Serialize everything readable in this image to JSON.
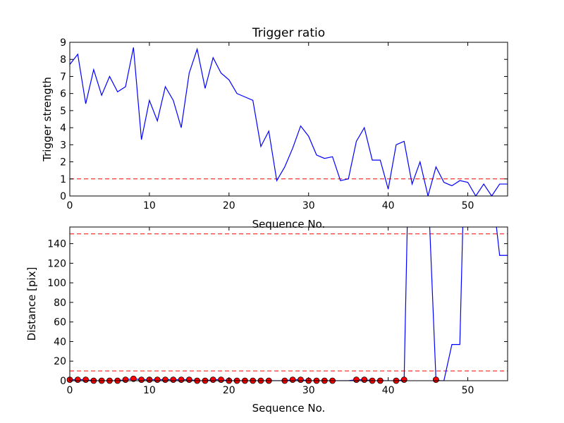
{
  "chart_data": [
    {
      "type": "line",
      "title": "Trigger ratio",
      "xlabel": "Sequence No.",
      "ylabel": "Trigger strength",
      "xlim": [
        0,
        55
      ],
      "ylim": [
        0,
        9
      ],
      "x_ticks": [
        "0",
        "10",
        "20",
        "30",
        "40",
        "50"
      ],
      "y_ticks": [
        "0",
        "1",
        "2",
        "3",
        "4",
        "5",
        "6",
        "7",
        "8",
        "9"
      ],
      "grid": false,
      "threshold_lines": [
        {
          "y": 1,
          "color": "#ff0000",
          "style": "dashed"
        }
      ],
      "series": [
        {
          "color": "#0000ff",
          "x": [
            0,
            1,
            2,
            3,
            4,
            5,
            6,
            7,
            8,
            9,
            10,
            11,
            12,
            13,
            14,
            15,
            16,
            17,
            18,
            19,
            20,
            21,
            22,
            23,
            24,
            25,
            26,
            27,
            28,
            29,
            30,
            31,
            32,
            33,
            34,
            35,
            36,
            37,
            38,
            39,
            40,
            41,
            42,
            43,
            44,
            45,
            46,
            47,
            48,
            49,
            50,
            51,
            52,
            53,
            54,
            55
          ],
          "values": [
            7.7,
            8.3,
            5.4,
            7.4,
            5.9,
            7.0,
            6.1,
            6.4,
            8.7,
            3.3,
            5.6,
            4.4,
            6.4,
            5.6,
            4.0,
            7.2,
            8.6,
            6.3,
            8.1,
            7.2,
            6.8,
            6.0,
            5.8,
            5.6,
            2.9,
            3.8,
            0.9,
            1.7,
            2.8,
            4.1,
            3.5,
            2.4,
            2.2,
            2.3,
            0.9,
            1.0,
            3.2,
            4.0,
            2.1,
            2.1,
            0.4,
            3.0,
            3.2,
            0.7,
            2.0,
            0.0,
            1.7,
            0.8,
            0.6,
            0.9,
            0.8,
            0.0,
            0.7,
            0.0,
            0.7,
            0.7
          ]
        }
      ]
    },
    {
      "type": "line",
      "title": "",
      "xlabel": "Sequence No.",
      "ylabel": "Distance [pix]",
      "xlim": [
        0,
        55
      ],
      "ylim": [
        0,
        157
      ],
      "x_ticks": [
        "0",
        "10",
        "20",
        "30",
        "40",
        "50"
      ],
      "y_ticks": [
        "0",
        "20",
        "40",
        "60",
        "80",
        "100",
        "120",
        "140"
      ],
      "grid": false,
      "threshold_lines": [
        {
          "y": 10,
          "color": "#ff0000",
          "style": "dashed"
        },
        {
          "y": 150,
          "color": "#ff0000",
          "style": "dashed"
        }
      ],
      "series": [
        {
          "color": "#0000ff",
          "x": [
            0,
            1,
            2,
            3,
            4,
            5,
            6,
            7,
            8,
            9,
            10,
            11,
            12,
            13,
            14,
            15,
            16,
            17,
            18,
            19,
            20,
            21,
            22,
            23,
            24,
            25,
            26,
            27,
            28,
            29,
            30,
            31,
            32,
            33,
            34,
            35,
            36,
            37,
            38,
            39,
            40,
            41,
            42,
            42.5,
            45,
            46,
            46.5,
            47,
            48,
            49,
            49.5,
            53,
            54,
            55
          ],
          "values": [
            1,
            1,
            1,
            0,
            0,
            0,
            0,
            1,
            2,
            1,
            1,
            1,
            1,
            1,
            1,
            1,
            0,
            0,
            1,
            1,
            0,
            0,
            0,
            0,
            0,
            0,
            0,
            0,
            1,
            1,
            0,
            0,
            0,
            0,
            0,
            0,
            1,
            1,
            0,
            0,
            0,
            0,
            1,
            200,
            200,
            1,
            0,
            0,
            37,
            37,
            200,
            200,
            128,
            128
          ]
        }
      ],
      "markers": {
        "color": "#ff0000",
        "x": [
          0,
          1,
          2,
          3,
          4,
          5,
          6,
          7,
          8,
          9,
          10,
          11,
          12,
          13,
          14,
          15,
          16,
          17,
          18,
          19,
          20,
          21,
          22,
          23,
          24,
          25,
          27,
          28,
          29,
          30,
          31,
          32,
          33,
          36,
          37,
          38,
          39,
          41,
          42,
          46
        ],
        "values": [
          1,
          1,
          1,
          0,
          0,
          0,
          0,
          1,
          2,
          1,
          1,
          1,
          1,
          1,
          1,
          1,
          0,
          0,
          1,
          1,
          0,
          0,
          0,
          0,
          0,
          0,
          0,
          1,
          1,
          0,
          0,
          0,
          0,
          1,
          1,
          0,
          0,
          0,
          1,
          1
        ]
      }
    }
  ]
}
